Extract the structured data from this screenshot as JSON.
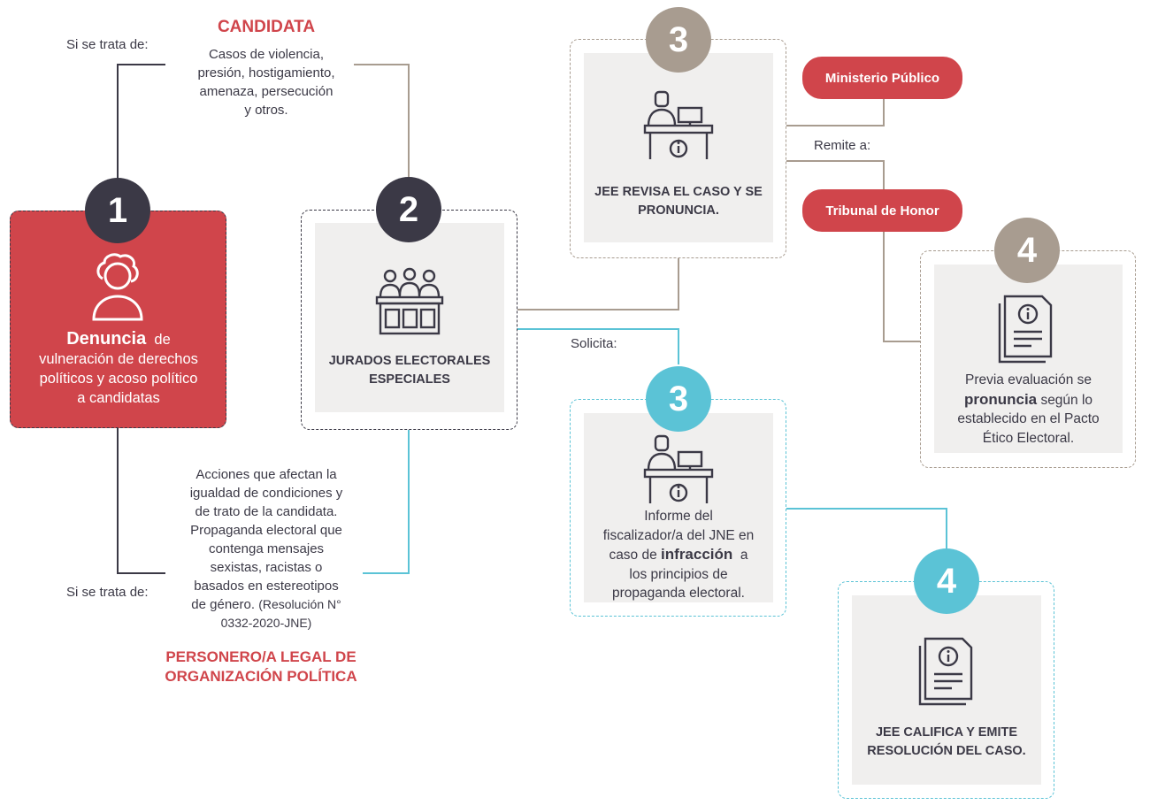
{
  "colors": {
    "red": "#d0454b",
    "dark": "#3b3946",
    "taupe": "#a89c90",
    "cyan": "#5bc3d6",
    "panel": "#f0efee"
  },
  "top_condition": {
    "label": "Si se trata de:",
    "title": "CANDIDATA",
    "lines": [
      "Casos de violencia,",
      "presión, hostigamiento,",
      "amenaza, persecución",
      "y otros."
    ]
  },
  "bottom_condition": {
    "label": "Si se trata de:",
    "lines": [
      "Acciones que afectan la",
      "igualdad de condiciones y",
      "de trato de la candidata.",
      "Propaganda electoral que",
      "contenga mensajes",
      "sexistas, racistas o",
      "basados en estereotipos"
    ],
    "line_last_prefix": "de género.",
    "line_last_suffix": "(Resolución N°",
    "line_end": "0332-2020-JNE)",
    "title_lines": [
      "PERSONERO/A LEGAL DE",
      "ORGANIZACIÓN POLÍTICA"
    ]
  },
  "step1": {
    "badge": "1",
    "icon": "person-icon",
    "bold": "Denuncia",
    "rest_first": "de",
    "lines": [
      "vulneración de derechos",
      "políticos y  acoso político",
      "a candidatas"
    ]
  },
  "step2": {
    "badge": "2",
    "icon": "tribunal-icon",
    "lines": [
      "JURADOS ELECTORALES",
      "ESPECIALES"
    ]
  },
  "step3_top": {
    "badge": "3",
    "icon": "desk-clerk-icon",
    "lines": [
      "JEE REVISA EL CASO Y SE",
      "PRONUNCIA."
    ]
  },
  "remite": {
    "label": "Remite a:",
    "option1": "Ministerio Público",
    "option2": "Tribunal de Honor"
  },
  "step4_top": {
    "badge": "4",
    "icon": "document-icon",
    "line1": "Previa evaluación  se",
    "bold": "pronuncia",
    "line2_rest": "según lo",
    "line3": "establecido en el Pacto",
    "line4": "Ético Electoral."
  },
  "solicita": {
    "label": "Solicita:"
  },
  "step3_bottom": {
    "badge": "3",
    "icon": "desk-clerk-icon",
    "line1": "Informe del",
    "line2": "fiscalizador/a del JNE en",
    "line3_prefix": "caso de",
    "bold": "infracción",
    "line3_suffix": "a",
    "line4": "los principios de",
    "line5": "propaganda electoral."
  },
  "step4_bottom": {
    "badge": "4",
    "icon": "document-icon",
    "lines": [
      "JEE CALIFICA Y EMITE",
      "RESOLUCIÓN DEL CASO."
    ]
  }
}
